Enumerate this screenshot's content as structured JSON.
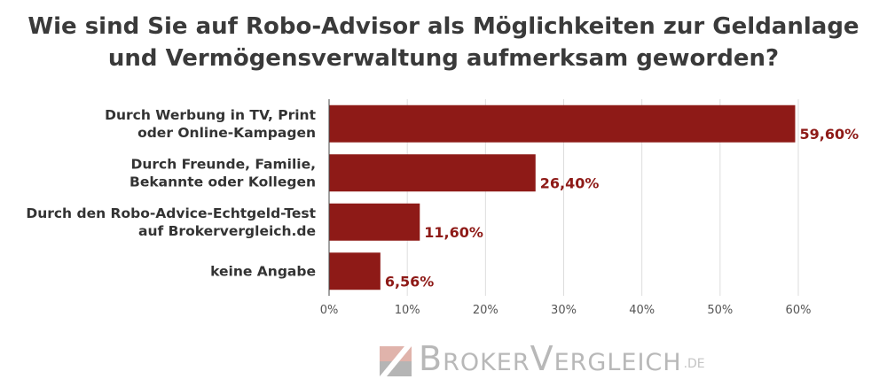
{
  "chart_data": {
    "type": "bar",
    "orientation": "horizontal",
    "title": "Wie sind Sie auf Robo-Advisor als Möglichkeiten zur Geldanlage und Vermögensverwaltung aufmerksam geworden?",
    "title_lines": [
      "Wie sind Sie auf Robo-Advisor als Möglichkeiten zur Geldanlage",
      "und Vermögensverwaltung aufmerksam geworden?"
    ],
    "categories": [
      [
        "Durch Werbung in TV, Print",
        "oder Online-Kampagen"
      ],
      [
        "Durch Freunde, Familie,",
        "Bekannte oder Kollegen"
      ],
      [
        "Durch den Robo-Advice-Echtgeld-Test",
        "auf Brokervergleich.de"
      ],
      [
        "keine Angabe"
      ]
    ],
    "values": [
      59.6,
      26.4,
      11.6,
      6.56
    ],
    "data_labels": [
      "59,60%",
      "26,40%",
      "11,60%",
      "6,56%"
    ],
    "xticks": [
      0,
      10,
      20,
      30,
      40,
      50,
      60
    ],
    "xtick_labels": [
      "0%",
      "10%",
      "20%",
      "30%",
      "40%",
      "50%",
      "60%"
    ],
    "xlim": [
      0,
      60
    ],
    "xlabel": "",
    "ylabel": "",
    "grid": "vertical",
    "legend": "none",
    "colors": {
      "bar": "#8e1a17",
      "label": "#8e1a17",
      "grid": "#dddddd"
    }
  },
  "logo": {
    "text": "BrokerVergleich",
    "suffix": ".de",
    "colors": {
      "top": "#e0b3ab",
      "bottom": "#b5b5b5",
      "text": "#b8b8b8"
    }
  }
}
